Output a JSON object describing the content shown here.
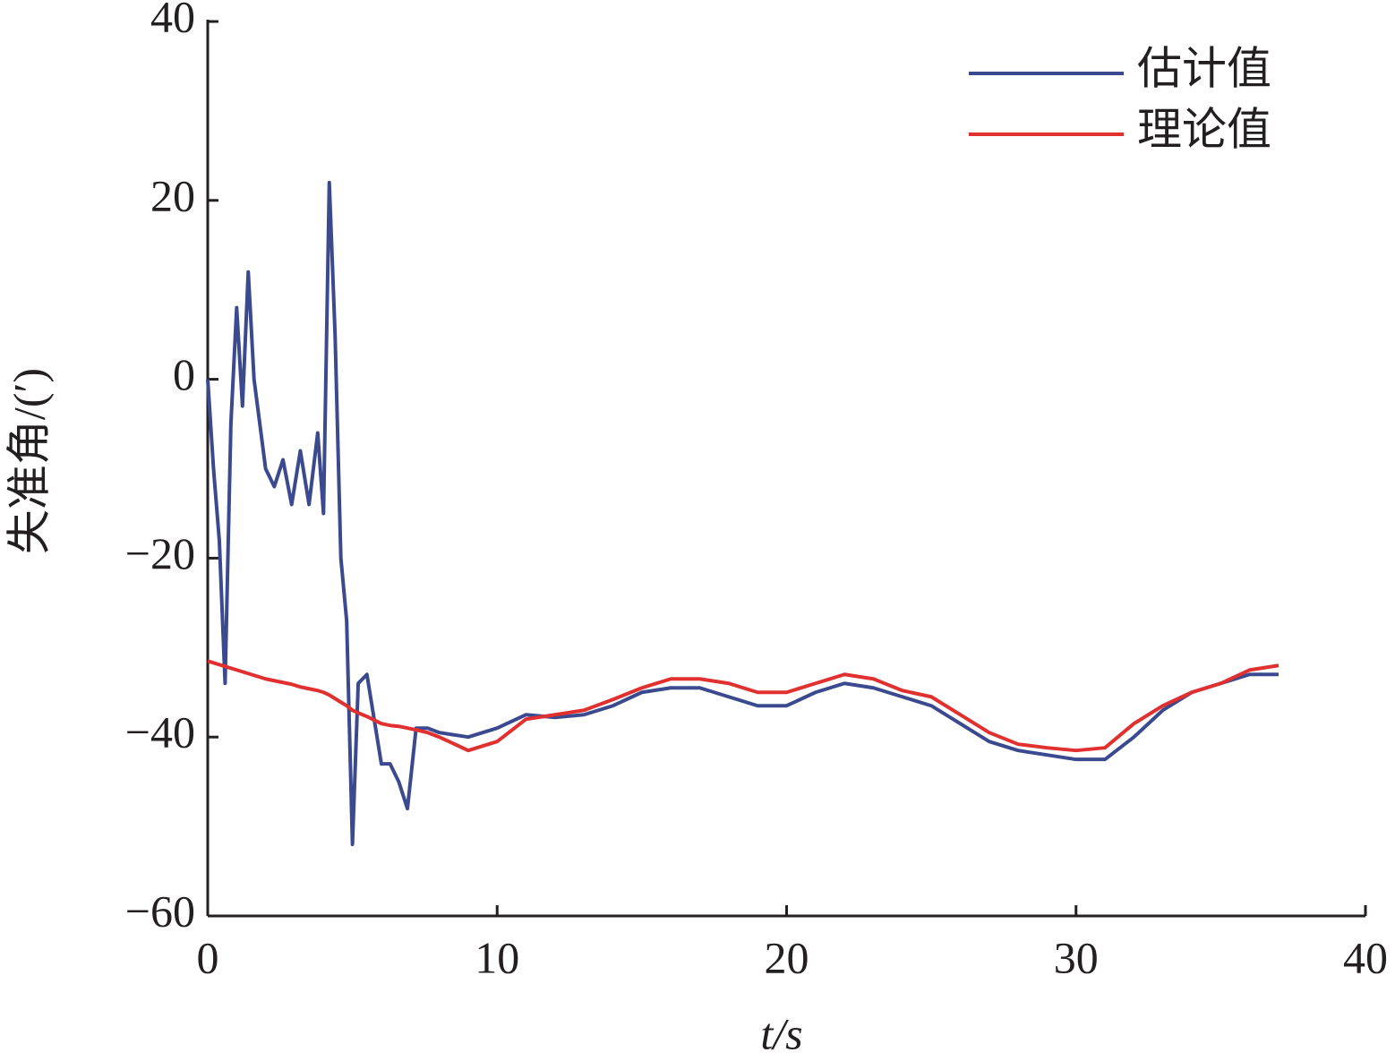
{
  "chart_data": {
    "type": "line",
    "xlabel": "t/s",
    "ylabel": "失准角/(′)",
    "x": [
      0,
      0.2,
      0.4,
      0.6,
      0.8,
      1.0,
      1.2,
      1.4,
      1.6,
      1.8,
      2.0,
      2.3,
      2.6,
      2.9,
      3.2,
      3.5,
      3.8,
      4.0,
      4.2,
      4.4,
      4.6,
      4.8,
      5.0,
      5.2,
      5.5,
      6.0,
      6.3,
      6.6,
      6.9,
      7.2,
      7.6,
      8,
      9,
      10,
      11,
      12,
      13,
      14,
      15,
      16,
      17,
      18,
      19,
      20,
      21,
      22,
      23,
      24,
      25,
      26,
      27,
      28,
      29,
      30,
      31,
      32,
      33,
      34,
      35,
      36,
      37
    ],
    "series": [
      {
        "name": "估计值",
        "color": "#3b4a8f",
        "values": [
          0,
          -10,
          -18,
          -34,
          -5,
          8,
          -3,
          12,
          0,
          -5,
          -10,
          -12,
          -9,
          -14,
          -8,
          -14,
          -6,
          -15,
          22,
          5,
          -20,
          -27,
          -52,
          -34,
          -33,
          -43,
          -43,
          -45,
          -48,
          -39,
          -39,
          -39.5,
          -40,
          -39,
          -37.5,
          -37.8,
          -37.5,
          -36.5,
          -35,
          -34.5,
          -34.5,
          -35.5,
          -36.5,
          -36.5,
          -35,
          -34,
          -34.5,
          -35.5,
          -36.5,
          -38.5,
          -40.5,
          -41.5,
          -42,
          -42.5,
          -42.5,
          -40,
          -37,
          -35,
          -34,
          -33,
          -33
        ]
      },
      {
        "name": "理论值",
        "color": "#e03030",
        "values": [
          -31.5,
          -31.7,
          -31.9,
          -32.1,
          -32.3,
          -32.5,
          -32.7,
          -32.9,
          -33.1,
          -33.3,
          -33.5,
          -33.7,
          -33.9,
          -34.1,
          -34.4,
          -34.6,
          -34.8,
          -35,
          -35.3,
          -35.7,
          -36.1,
          -36.5,
          -37,
          -37.3,
          -37.7,
          -38.5,
          -38.7,
          -38.8,
          -39,
          -39.2,
          -39.5,
          -40,
          -41.5,
          -40.5,
          -38,
          -37.5,
          -37,
          -35.8,
          -34.5,
          -33.5,
          -33.5,
          -34,
          -35,
          -35,
          -34,
          -33,
          -33.5,
          -34.8,
          -35.5,
          -37.5,
          -39.5,
          -40.8,
          -41.2,
          -41.5,
          -41.2,
          -38.5,
          -36.5,
          -35,
          -34,
          -32.5,
          -32
        ]
      }
    ],
    "xlim": [
      0,
      40
    ],
    "xticks": [
      0,
      10,
      20,
      30,
      40
    ],
    "ylim": [
      -60,
      40
    ],
    "yticks": [
      {
        "value": -60,
        "label": "−60"
      },
      {
        "value": -40,
        "label": "−40"
      },
      {
        "value": -20,
        "label": "−20"
      },
      0,
      20,
      40
    ],
    "legend": "upper right",
    "grid": false
  }
}
